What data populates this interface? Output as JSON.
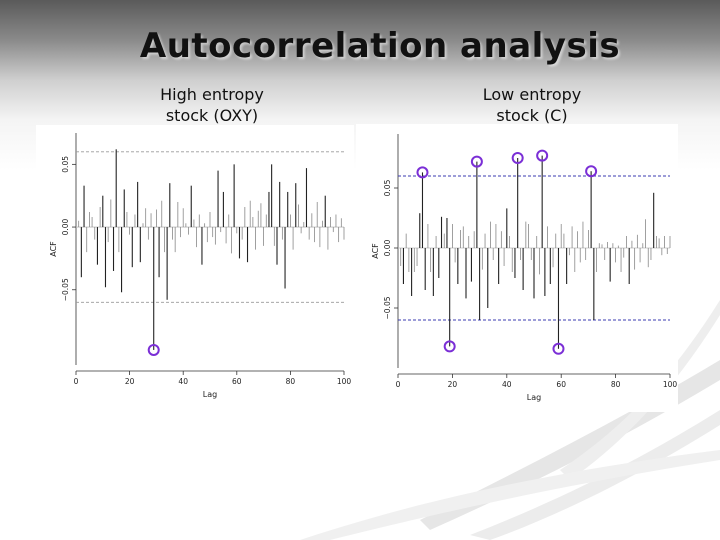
{
  "slide": {
    "title": "Autocorrelation analysis"
  },
  "chart_data": [
    {
      "type": "bar",
      "subtitle": [
        "High entropy",
        "stock (OXY)"
      ],
      "xlabel": "Lag",
      "ylabel": "ACF",
      "xlim": [
        0,
        100
      ],
      "ylim": [
        -0.11,
        0.075
      ],
      "xticks": [
        "0",
        "20",
        "40",
        "60",
        "80",
        "100"
      ],
      "yticks": [
        "-0.05",
        "0.00",
        "0.05"
      ],
      "confidence_band": [
        -0.06,
        0.06
      ],
      "band_style": "dashed",
      "band_color": "#9a9a9a",
      "highlight_color": "#7b2fd6",
      "highlighted_lags": [
        29
      ],
      "lags": [
        1,
        2,
        3,
        4,
        5,
        6,
        7,
        8,
        9,
        10,
        11,
        12,
        13,
        14,
        15,
        16,
        17,
        18,
        19,
        20,
        21,
        22,
        23,
        24,
        25,
        26,
        27,
        28,
        29,
        30,
        31,
        32,
        33,
        34,
        35,
        36,
        37,
        38,
        39,
        40,
        41,
        42,
        43,
        44,
        45,
        46,
        47,
        48,
        49,
        50,
        51,
        52,
        53,
        54,
        55,
        56,
        57,
        58,
        59,
        60,
        61,
        62,
        63,
        64,
        65,
        66,
        67,
        68,
        69,
        70,
        71,
        72,
        73,
        74,
        75,
        76,
        77,
        78,
        79,
        80,
        81,
        82,
        83,
        84,
        85,
        86,
        87,
        88,
        89,
        90,
        91,
        92,
        93,
        94,
        95,
        96,
        97,
        98,
        99,
        100
      ],
      "values": [
        0.005,
        -0.04,
        0.033,
        -0.02,
        0.012,
        0.008,
        -0.01,
        -0.03,
        0.016,
        0.025,
        -0.048,
        -0.012,
        0.022,
        -0.035,
        0.062,
        -0.02,
        -0.052,
        0.03,
        0.012,
        -0.006,
        -0.032,
        0.01,
        0.036,
        -0.028,
        0.003,
        0.015,
        -0.01,
        0.011,
        -0.098,
        0.014,
        -0.04,
        0.021,
        -0.02,
        -0.058,
        0.035,
        -0.01,
        -0.02,
        0.02,
        -0.008,
        0.015,
        0.003,
        -0.006,
        0.033,
        0.006,
        -0.016,
        0.01,
        -0.03,
        0.003,
        -0.012,
        0.012,
        -0.008,
        -0.014,
        0.045,
        -0.004,
        0.028,
        -0.013,
        0.01,
        -0.021,
        0.05,
        -0.005,
        -0.025,
        -0.01,
        0.016,
        -0.028,
        0.021,
        0.008,
        -0.018,
        0.013,
        0.019,
        -0.015,
        0.01,
        0.028,
        0.05,
        -0.015,
        -0.03,
        0.036,
        -0.01,
        -0.049,
        0.028,
        0.01,
        -0.018,
        0.035,
        0.018,
        -0.005,
        0.004,
        0.047,
        -0.01,
        0.011,
        -0.012,
        0.02,
        -0.016,
        0.005,
        0.025,
        -0.018,
        0.008,
        -0.004,
        0.01,
        -0.012,
        0.007,
        -0.01
      ]
    },
    {
      "type": "bar",
      "subtitle": [
        "Low entropy",
        "stock (C)"
      ],
      "xlabel": "Lag",
      "ylabel": "ACF",
      "xlim": [
        0,
        100
      ],
      "ylim": [
        -0.1,
        0.095
      ],
      "xticks": [
        "0",
        "20",
        "40",
        "60",
        "80",
        "100"
      ],
      "yticks": [
        "-0.05",
        "0.00",
        "0.05"
      ],
      "confidence_band": [
        -0.06,
        0.06
      ],
      "band_style": "dashed",
      "band_color": "#3b3bb0",
      "highlight_color": "#7b2fd6",
      "highlighted_lags": [
        9,
        19,
        29,
        44,
        53,
        59,
        71
      ],
      "lags": [
        1,
        2,
        3,
        4,
        5,
        6,
        7,
        8,
        9,
        10,
        11,
        12,
        13,
        14,
        15,
        16,
        17,
        18,
        19,
        20,
        21,
        22,
        23,
        24,
        25,
        26,
        27,
        28,
        29,
        30,
        31,
        32,
        33,
        34,
        35,
        36,
        37,
        38,
        39,
        40,
        41,
        42,
        43,
        44,
        45,
        46,
        47,
        48,
        49,
        50,
        51,
        52,
        53,
        54,
        55,
        56,
        57,
        58,
        59,
        60,
        61,
        62,
        63,
        64,
        65,
        66,
        67,
        68,
        69,
        70,
        71,
        72,
        73,
        74,
        75,
        76,
        77,
        78,
        79,
        80,
        81,
        82,
        83,
        84,
        85,
        86,
        87,
        88,
        89,
        90,
        91,
        92,
        93,
        94,
        95,
        96,
        97,
        98,
        99,
        100
      ],
      "values": [
        -0.015,
        -0.03,
        0.012,
        -0.02,
        -0.04,
        -0.02,
        -0.015,
        0.029,
        0.063,
        -0.035,
        0.02,
        -0.02,
        -0.04,
        0.01,
        -0.025,
        0.026,
        0.012,
        0.025,
        -0.082,
        0.02,
        -0.012,
        -0.03,
        0.015,
        0.018,
        -0.042,
        0.01,
        -0.028,
        0.014,
        0.072,
        -0.06,
        -0.018,
        0.012,
        -0.05,
        0.022,
        -0.01,
        0.02,
        -0.03,
        0.014,
        -0.015,
        0.033,
        0.01,
        -0.02,
        -0.025,
        0.075,
        -0.01,
        -0.035,
        0.022,
        0.02,
        -0.01,
        -0.042,
        0.01,
        -0.022,
        0.077,
        -0.04,
        0.018,
        -0.03,
        -0.016,
        0.012,
        -0.084,
        0.02,
        0.012,
        -0.03,
        -0.006,
        0.018,
        -0.02,
        0.014,
        -0.012,
        0.022,
        -0.01,
        0.015,
        0.064,
        -0.06,
        -0.02,
        0.004,
        0.003,
        -0.01,
        0.005,
        -0.028,
        0.004,
        -0.012,
        0.002,
        -0.02,
        -0.008,
        0.01,
        -0.03,
        0.006,
        -0.018,
        0.011,
        -0.012,
        0.004,
        0.024,
        -0.016,
        -0.01,
        0.046,
        0.01,
        0.008,
        -0.006,
        0.01,
        -0.005,
        0.01
      ]
    }
  ]
}
